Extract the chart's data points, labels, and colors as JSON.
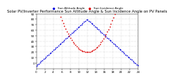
{
  "title": "Solar PV/Inverter Performance Sun Altitude Angle & Sun Incidence Angle on PV Panels",
  "blue_label": "Sun Altitude Angle",
  "red_label": "Sun Incidence Angle",
  "xlim": [
    0,
    24
  ],
  "ylim": [
    -10,
    90
  ],
  "yticks": [
    0,
    10,
    20,
    30,
    40,
    50,
    60,
    70,
    80,
    90
  ],
  "xticks": [
    0,
    2,
    4,
    6,
    8,
    10,
    12,
    14,
    16,
    18,
    20,
    22,
    24
  ],
  "blue_color": "#0000dd",
  "red_color": "#dd0000",
  "background": "#ffffff",
  "grid_color": "#888888",
  "title_fontsize": 3.8,
  "tick_fontsize": 3.0,
  "legend_fontsize": 3.0,
  "marker_size": 1.5,
  "sunrise": 5.5,
  "sunset": 18.5,
  "max_alt": 80.0,
  "min_incidence": 20.0,
  "max_incidence": 70.0
}
